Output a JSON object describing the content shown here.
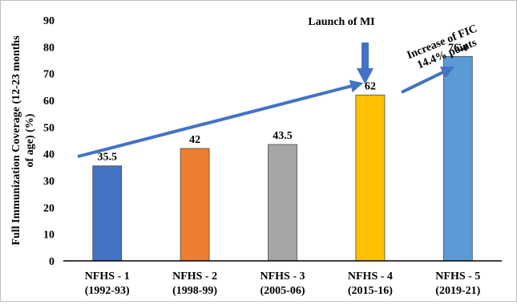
{
  "chart_data": {
    "type": "bar",
    "categories": [
      [
        "NFHS - 1",
        "(1992-93)"
      ],
      [
        "NFHS - 2",
        "(1998-99)"
      ],
      [
        "NFHS - 3",
        "(2005-06)"
      ],
      [
        "NFHS - 4",
        "(2015-16)"
      ],
      [
        "NFHS - 5",
        "(2019-21)"
      ]
    ],
    "values": [
      35.5,
      42,
      43.5,
      62,
      76.4
    ],
    "value_labels": [
      "35.5",
      "42",
      "43.5",
      "62",
      "76.4"
    ],
    "bar_colors": [
      "#4472c4",
      "#ed7d31",
      "#a5a5a5",
      "#ffc000",
      "#5b9bd5"
    ],
    "ylabel_lines": [
      "Full Immunization Coverage (12-23 months",
      "of age) (%)"
    ],
    "xlabel": "",
    "ylim": [
      0,
      90
    ],
    "yticks": [
      0,
      10,
      20,
      30,
      40,
      50,
      60,
      70,
      80,
      90
    ],
    "grid": false,
    "annotations": {
      "launch": "Launch of MI",
      "increase_lines": [
        "Increase of FIC",
        "14.4% points"
      ],
      "arrow_color": "#4472c4"
    }
  }
}
